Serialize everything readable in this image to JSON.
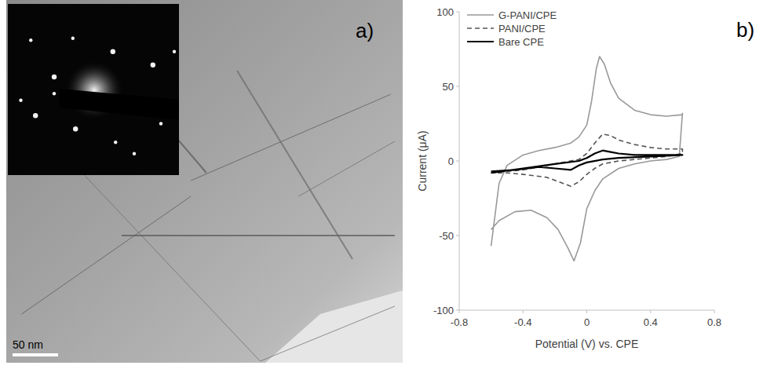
{
  "panel_a": {
    "label": "a)",
    "scale_bar": "50 nm"
  },
  "chart_data": {
    "type": "line",
    "panel_label": "b)",
    "x_label": "Potential (V) vs. CPE",
    "y_label": "Current (μA)",
    "xlim": [
      -0.8,
      0.8
    ],
    "xticks": [
      -0.8,
      -0.4,
      0,
      0.4,
      0.8
    ],
    "ylim": [
      -100,
      100
    ],
    "yticks": [
      -100,
      -50,
      0,
      50,
      100
    ],
    "grid": false,
    "legend": "upper left",
    "series": [
      {
        "name": "G-PANI/CPE",
        "color": "#999999",
        "line_style": "solid",
        "x": [
          -0.6,
          -0.55,
          -0.5,
          -0.4,
          -0.3,
          -0.2,
          -0.1,
          -0.05,
          0.0,
          0.03,
          0.06,
          0.08,
          0.11,
          0.15,
          0.2,
          0.3,
          0.4,
          0.5,
          0.6,
          0.6,
          0.58,
          0.5,
          0.4,
          0.3,
          0.2,
          0.1,
          0.05,
          0.0,
          -0.04,
          -0.08,
          -0.12,
          -0.18,
          -0.25,
          -0.35,
          -0.45,
          -0.55,
          -0.6
        ],
        "values": [
          -57,
          -15,
          -3,
          4,
          7,
          9,
          12,
          16,
          24,
          40,
          62,
          70,
          65,
          52,
          42,
          34,
          31,
          30,
          31,
          32,
          3,
          1,
          0,
          -2,
          -5,
          -12,
          -20,
          -32,
          -55,
          -67,
          -58,
          -46,
          -38,
          -33,
          -34,
          -40,
          -46
        ]
      },
      {
        "name": "PANI/CPE",
        "color": "#555555",
        "line_style": "dashed",
        "x": [
          -0.6,
          -0.4,
          -0.2,
          -0.05,
          0.0,
          0.05,
          0.1,
          0.15,
          0.2,
          0.3,
          0.4,
          0.5,
          0.6,
          0.6,
          0.5,
          0.4,
          0.2,
          0.1,
          0.05,
          0.0,
          -0.05,
          -0.1,
          -0.15,
          -0.25,
          -0.4,
          -0.5,
          -0.6
        ],
        "values": [
          -8,
          -6,
          -2,
          1,
          5,
          12,
          18,
          17,
          14,
          11,
          9,
          8,
          8,
          5,
          3,
          2,
          0,
          -2,
          -5,
          -9,
          -14,
          -17,
          -15,
          -11,
          -9,
          -8,
          -8
        ]
      },
      {
        "name": "Bare CPE",
        "color": "#000000",
        "line_style": "solid",
        "x": [
          -0.6,
          -0.4,
          -0.2,
          -0.05,
          0.0,
          0.05,
          0.1,
          0.15,
          0.2,
          0.3,
          0.4,
          0.5,
          0.6,
          0.6,
          0.4,
          0.2,
          0.1,
          0.0,
          -0.05,
          -0.1,
          -0.2,
          -0.3,
          -0.45,
          -0.6
        ],
        "values": [
          -8,
          -5,
          -2,
          0,
          2,
          5,
          7,
          6,
          5,
          4,
          4,
          4,
          4,
          4,
          3,
          2,
          1,
          -1,
          -3,
          -6,
          -5,
          -4,
          -6,
          -7
        ]
      }
    ]
  }
}
